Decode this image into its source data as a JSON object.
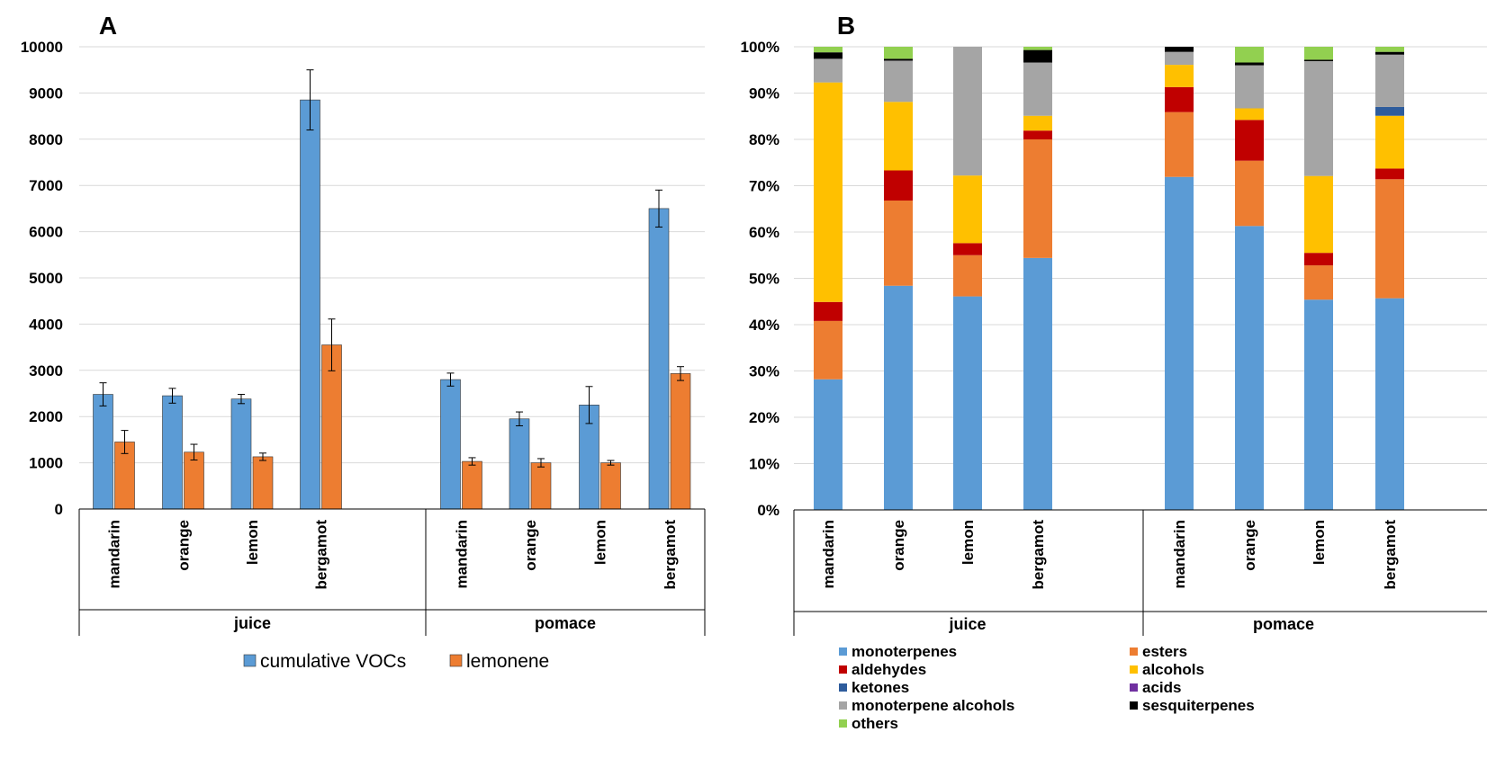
{
  "chart_data": [
    {
      "type": "bar",
      "panel_label": "A",
      "title": "",
      "xlabel": "",
      "ylabel": "",
      "ylim": [
        0,
        10000
      ],
      "yticks": [
        0,
        1000,
        2000,
        3000,
        4000,
        5000,
        6000,
        7000,
        8000,
        9000,
        10000
      ],
      "grid": true,
      "groups": [
        {
          "label": "juice",
          "categories": [
            "mandarin",
            "orange",
            "lemon",
            "bergamot"
          ]
        },
        {
          "label": "pomace",
          "categories": [
            "mandarin",
            "orange",
            "lemon",
            "bergamot"
          ]
        }
      ],
      "legend_position": "bottom",
      "series": [
        {
          "name": "cumulative VOCs",
          "color": "#5b9bd5",
          "values": [
            2480,
            2450,
            2380,
            8850,
            2800,
            1950,
            2250,
            6500
          ],
          "errors": [
            250,
            160,
            100,
            650,
            140,
            150,
            400,
            400
          ]
        },
        {
          "name": "lemonene",
          "color": "#ed7d31",
          "values": [
            1450,
            1230,
            1130,
            3550,
            1030,
            1000,
            1000,
            2930
          ],
          "errors": [
            250,
            170,
            80,
            560,
            80,
            90,
            50,
            150
          ]
        }
      ]
    },
    {
      "type": "bar",
      "stacked": true,
      "percent": true,
      "panel_label": "B",
      "title": "",
      "xlabel": "",
      "ylabel": "",
      "ylim": [
        0,
        100
      ],
      "yticks": [
        "0%",
        "10%",
        "20%",
        "30%",
        "40%",
        "50%",
        "60%",
        "70%",
        "80%",
        "90%",
        "100%"
      ],
      "grid": true,
      "groups": [
        {
          "label": "juice",
          "categories": [
            "mandarin",
            "orange",
            "lemon",
            "bergamot"
          ]
        },
        {
          "label": "pomace",
          "categories": [
            "mandarin",
            "orange",
            "lemon",
            "bergamot"
          ]
        }
      ],
      "legend_position": "bottom",
      "series": [
        {
          "name": "monoterpenes",
          "color": "#5b9bd5",
          "values": [
            28.2,
            48.4,
            46.1,
            54.4,
            71.9,
            61.3,
            45.4,
            45.7
          ]
        },
        {
          "name": "esters",
          "color": "#ed7d31",
          "values": [
            12.6,
            18.4,
            8.9,
            25.6,
            14.0,
            14.1,
            7.4,
            25.7
          ]
        },
        {
          "name": "aldehydes",
          "color": "#c00000",
          "values": [
            4.1,
            6.5,
            2.6,
            1.9,
            5.4,
            8.8,
            2.7,
            2.3
          ]
        },
        {
          "name": "alcohols",
          "color": "#ffc000",
          "values": [
            47.4,
            14.8,
            14.6,
            3.2,
            4.8,
            2.5,
            16.6,
            11.4
          ]
        },
        {
          "name": "ketones",
          "color": "#2e5c9c",
          "values": [
            0,
            0,
            0,
            0,
            0,
            0,
            0,
            1.9
          ]
        },
        {
          "name": "acids",
          "color": "#7030a0",
          "values": [
            0,
            0,
            0,
            0,
            0,
            0,
            0,
            0
          ]
        },
        {
          "name": "monoterpene alcohols",
          "color": "#a5a5a5",
          "values": [
            5.1,
            8.9,
            27.8,
            11.5,
            2.8,
            9.3,
            24.8,
            11.3
          ]
        },
        {
          "name": "sesquiterpenes",
          "color": "#000000",
          "values": [
            1.4,
            0.4,
            0,
            2.7,
            1.1,
            0.6,
            0.3,
            0.6
          ]
        },
        {
          "name": "others",
          "color": "#92d050",
          "values": [
            1.2,
            2.6,
            0,
            0.7,
            0,
            3.4,
            2.8,
            1.1
          ]
        }
      ]
    }
  ]
}
